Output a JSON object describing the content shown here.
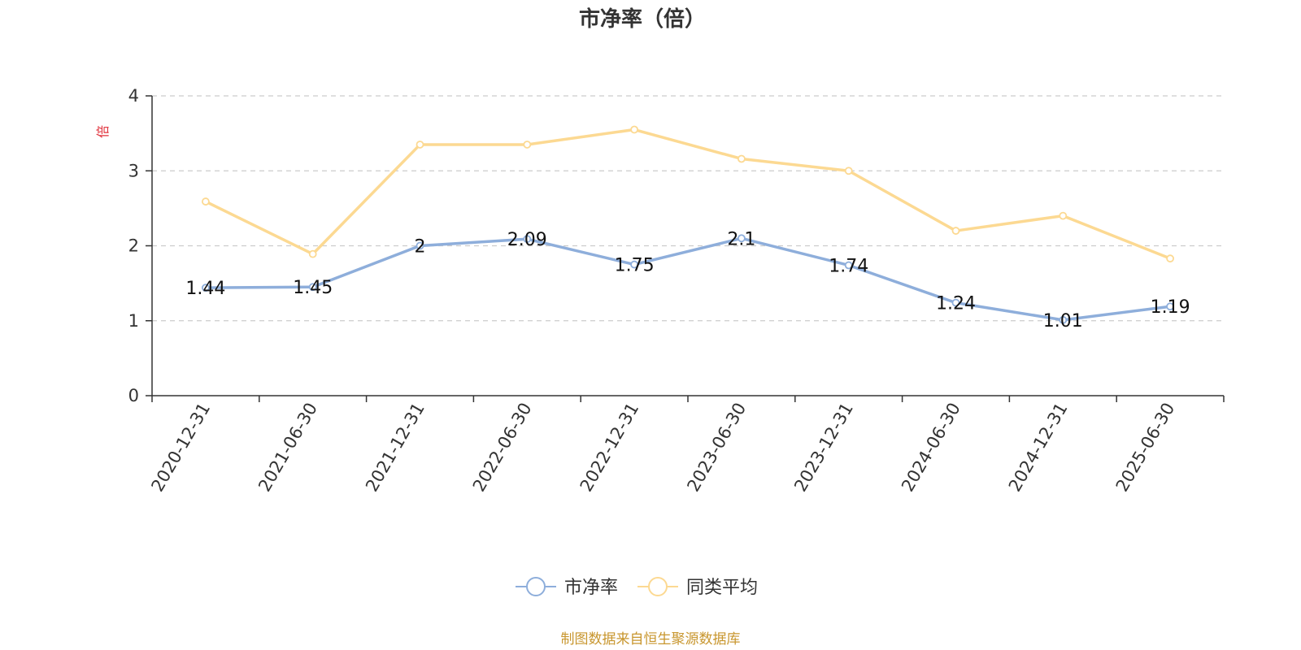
{
  "chart_data": {
    "type": "line",
    "title": "市净率（倍）",
    "ylabel": "倍",
    "xlabel": "",
    "categories": [
      "2020-12-31",
      "2021-06-30",
      "2021-12-31",
      "2022-06-30",
      "2022-12-31",
      "2023-06-30",
      "2023-12-31",
      "2024-06-30",
      "2024-12-31",
      "2025-06-30"
    ],
    "ylim": [
      0,
      4
    ],
    "yticks": [
      "0",
      "1",
      "2",
      "3",
      "4"
    ],
    "grid": true,
    "legend_position": "bottom",
    "series": [
      {
        "name": "市净率",
        "color": "#8eaedb",
        "values": [
          1.44,
          1.45,
          2,
          2.09,
          1.75,
          2.1,
          1.74,
          1.24,
          1.01,
          1.19
        ],
        "labels": [
          "1.44",
          "1.45",
          "2",
          "2.09",
          "1.75",
          "2.1",
          "1.74",
          "1.24",
          "1.01",
          "1.19"
        ]
      },
      {
        "name": "同类平均",
        "color": "#fcd992",
        "values": [
          2.59,
          1.89,
          3.35,
          3.35,
          3.55,
          3.16,
          3.0,
          2.2,
          2.4,
          1.83
        ]
      }
    ]
  },
  "colors": {
    "axis": "#333333",
    "grid": "#cccccc",
    "unit": "#e0303a",
    "source": "#c8962e"
  },
  "source_note": "制图数据来自恒生聚源数据库"
}
